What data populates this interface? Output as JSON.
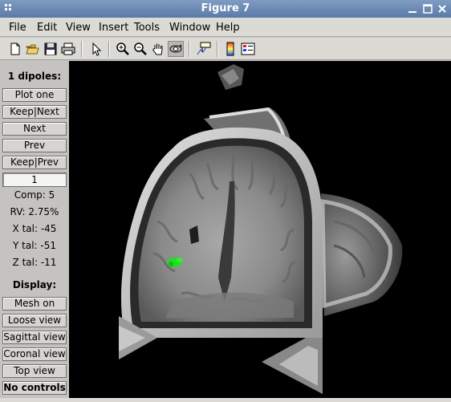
{
  "window": {
    "title": "Figure 7",
    "minimize_icon": "minimize-icon",
    "maximize_icon": "maximize-icon",
    "close_icon": "close-icon"
  },
  "menubar": {
    "items": [
      "File",
      "Edit",
      "View",
      "Insert",
      "Tools",
      "Window",
      "Help"
    ]
  },
  "toolbar": {
    "icons": [
      "new-figure-icon",
      "open-file-icon",
      "save-icon",
      "print-icon",
      "select-arrow-icon",
      "zoom-in-icon",
      "zoom-out-icon",
      "pan-hand-icon",
      "rotate-3d-icon",
      "data-cursor-icon",
      "colorbar-icon",
      "legend-icon"
    ]
  },
  "panel": {
    "header": "1 dipoles:",
    "buttons": {
      "plot_one": "Plot one",
      "keep_next": "Keep|Next",
      "next": "Next",
      "prev": "Prev",
      "keep_prev": "Keep|Prev"
    },
    "index_value": "1",
    "comp": "Comp: 5",
    "rv": "RV: 2.75%",
    "x_tal": "X tal: -45",
    "y_tal": "Y tal: -51",
    "z_tal": "Z tal: -11",
    "display_label": "Display:",
    "display_buttons": {
      "mesh_on": "Mesh on",
      "loose_view": "Loose view",
      "sagittal_view": "Sagittal view",
      "coronal_view": "Coronal view",
      "top_view": "Top view",
      "no_controls": "No controls"
    }
  },
  "colors": {
    "titlebar": "#6a89b4",
    "dipole": "#22dd22",
    "canvas_bg": "#000000"
  }
}
